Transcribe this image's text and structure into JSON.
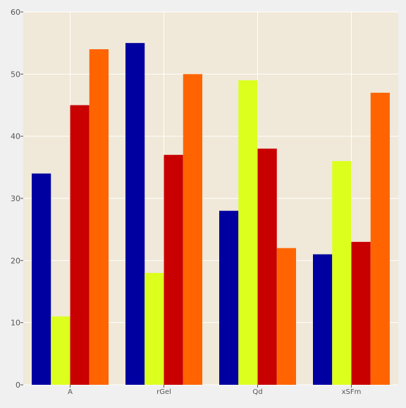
{
  "chart_data": {
    "type": "bar",
    "title": "",
    "xlabel": "",
    "ylabel": "",
    "categories": [
      "A",
      "rGel",
      "Qd",
      "xSFm"
    ],
    "ylim": [
      0,
      60
    ],
    "yticks": [
      0,
      10,
      20,
      30,
      40,
      50,
      60
    ],
    "grid": true,
    "legend": "none",
    "series": [
      {
        "values": [
          34,
          55,
          28,
          21
        ],
        "color": "#0000a0"
      },
      {
        "values": [
          11,
          18,
          49,
          36
        ],
        "color": "#dcff1e"
      },
      {
        "values": [
          45,
          37,
          38,
          23
        ],
        "color": "#c80000"
      },
      {
        "values": [
          54,
          50,
          22,
          47
        ],
        "color": "#ff6400"
      }
    ],
    "colors": {
      "plot_background": "#f0e8d8",
      "figure_background": "#f0f0f0",
      "grid": "#ffffff"
    }
  }
}
